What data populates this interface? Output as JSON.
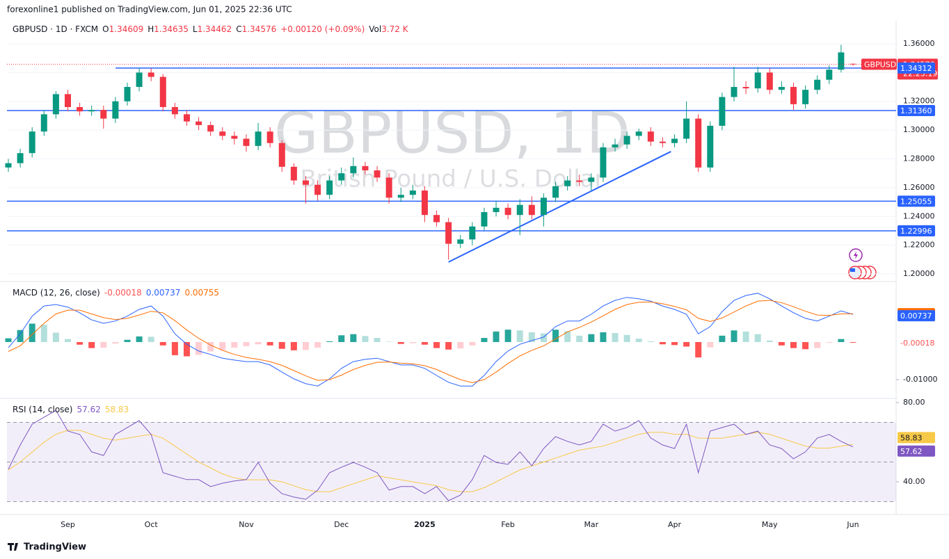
{
  "page": {
    "caption": "forexonline1 published on TradingView.com, Jun 01, 2025 22:36 UTC",
    "brand": "TradingView"
  },
  "chart_data": [
    {
      "type": "candlestick",
      "title": "GBPUSD · 1D · FXCM",
      "legend_labels": [
        "O",
        "H",
        "L",
        "C",
        "Vol"
      ],
      "change": "+0.00120 (+0.09%)",
      "volume": "3.72 K",
      "watermark": "GBPUSD, 1D",
      "watermark_subtitle": "British Pound / U.S. Dollar",
      "symbol": "GBPUSD",
      "countdown": "22:23:19",
      "categories": [
        null,
        null,
        null,
        null,
        null,
        "Sep",
        null,
        null,
        null,
        null,
        null,
        null,
        "Oct",
        null,
        null,
        null,
        null,
        null,
        null,
        null,
        "Nov",
        null,
        null,
        null,
        null,
        null,
        null,
        null,
        "Dec",
        null,
        null,
        null,
        null,
        null,
        null,
        "2025",
        null,
        null,
        null,
        null,
        null,
        null,
        "Feb",
        null,
        null,
        null,
        null,
        null,
        null,
        "Mar",
        null,
        null,
        null,
        null,
        null,
        null,
        "Apr",
        null,
        null,
        null,
        null,
        null,
        null,
        null,
        "May",
        null,
        null,
        null,
        null,
        null,
        null,
        "Jun"
      ],
      "open": [
        1.274,
        1.277,
        1.284,
        1.299,
        1.311,
        1.325,
        1.316,
        1.313,
        1.314,
        1.308,
        1.32,
        1.33,
        1.34,
        1.337,
        1.316,
        1.311,
        1.306,
        1.3035,
        1.299,
        1.296,
        1.294,
        1.289,
        1.299,
        1.291,
        1.2745,
        1.265,
        1.262,
        1.255,
        1.265,
        1.27,
        1.275,
        1.272,
        1.267,
        1.253,
        1.255,
        1.258,
        1.241,
        1.236,
        1.221,
        1.224,
        1.233,
        1.243,
        1.246,
        1.241,
        1.248,
        1.241,
        1.253,
        1.261,
        1.265,
        1.264,
        1.267,
        1.288,
        1.29,
        1.296,
        1.299,
        1.292,
        1.291,
        1.294,
        1.308,
        1.274,
        1.303,
        1.323,
        1.33,
        1.329,
        1.34,
        1.328,
        1.33,
        1.318,
        1.328,
        1.335,
        1.342,
        1.34609
      ],
      "high": [
        1.28,
        1.287,
        1.302,
        1.314,
        1.327,
        1.328,
        1.319,
        1.317,
        1.317,
        1.323,
        1.333,
        1.3434,
        1.343,
        1.339,
        1.319,
        1.314,
        1.309,
        1.306,
        1.302,
        1.299,
        1.297,
        1.305,
        1.302,
        1.293,
        1.277,
        1.268,
        1.265,
        1.268,
        1.274,
        1.281,
        1.278,
        1.275,
        1.27,
        1.26,
        1.262,
        1.261,
        1.244,
        1.239,
        1.227,
        1.236,
        1.246,
        1.251,
        1.249,
        1.252,
        1.254,
        1.256,
        1.264,
        1.268,
        1.269,
        1.27,
        1.291,
        1.294,
        1.299,
        1.301,
        1.302,
        1.295,
        1.297,
        1.32,
        1.311,
        1.306,
        1.326,
        1.344,
        1.334,
        1.344,
        1.343,
        1.334,
        1.333,
        1.331,
        1.338,
        1.345,
        1.3593,
        1.34635
      ],
      "low": [
        1.271,
        1.274,
        1.281,
        1.296,
        1.308,
        1.313,
        1.31,
        1.31,
        1.301,
        1.305,
        1.317,
        1.327,
        1.334,
        1.313,
        1.308,
        1.303,
        1.3,
        1.296,
        1.293,
        1.29,
        1.285,
        1.286,
        1.288,
        1.271,
        1.262,
        1.249,
        1.251,
        1.252,
        1.262,
        1.267,
        1.269,
        1.264,
        1.249,
        1.25,
        1.252,
        1.236,
        1.233,
        1.21,
        1.218,
        1.22,
        1.23,
        1.24,
        1.238,
        1.227,
        1.238,
        1.233,
        1.25,
        1.258,
        1.261,
        1.258,
        1.264,
        1.285,
        1.287,
        1.293,
        1.289,
        1.288,
        1.288,
        1.291,
        1.271,
        1.271,
        1.3,
        1.32,
        1.325,
        1.326,
        1.325,
        1.325,
        1.314,
        1.315,
        1.325,
        1.332,
        1.34,
        1.34462
      ],
      "close": [
        1.277,
        1.284,
        1.299,
        1.311,
        1.325,
        1.316,
        1.313,
        1.314,
        1.308,
        1.32,
        1.33,
        1.34,
        1.337,
        1.316,
        1.311,
        1.306,
        1.3035,
        1.299,
        1.296,
        1.294,
        1.289,
        1.299,
        1.291,
        1.2745,
        1.265,
        1.262,
        1.255,
        1.265,
        1.27,
        1.275,
        1.272,
        1.267,
        1.253,
        1.255,
        1.258,
        1.241,
        1.236,
        1.221,
        1.224,
        1.233,
        1.243,
        1.246,
        1.241,
        1.248,
        1.241,
        1.253,
        1.261,
        1.265,
        1.264,
        1.267,
        1.288,
        1.29,
        1.296,
        1.299,
        1.292,
        1.291,
        1.294,
        1.308,
        1.274,
        1.303,
        1.323,
        1.33,
        1.329,
        1.34,
        1.328,
        1.33,
        1.318,
        1.328,
        1.335,
        1.342,
        1.354,
        1.34576
      ],
      "up_color": "#089981",
      "down_color": "#f23645",
      "level_color": "#2962ff",
      "grid": true,
      "ylim": [
        1.1947,
        1.3711
      ],
      "yticks": [
        {
          "value": 1.2,
          "label": "1.20000"
        },
        {
          "value": 1.22,
          "label": "1.22000"
        },
        {
          "value": 1.24,
          "label": "1.24000"
        },
        {
          "value": 1.26,
          "label": "1.26000"
        },
        {
          "value": 1.28,
          "label": "1.28000"
        },
        {
          "value": 1.3,
          "label": "1.30000"
        },
        {
          "value": 1.32,
          "label": "1.32000"
        },
        {
          "value": 1.34,
          "label": "1.34000"
        },
        {
          "value": 1.36,
          "label": "1.36000"
        }
      ],
      "levels": [
        1.34312,
        {
          "value": 1.3136,
          "label": "1.31360"
        },
        1.25055,
        1.22996
      ],
      "trendline": {
        "x": [
          37,
          55.7
        ],
        "y": [
          1.2083,
          1.2851
        ]
      }
    },
    {
      "type": "macd",
      "title": "MACD (12, 26, close)",
      "series": [
        {
          "color": "#2962ff",
          "values": [
            -0.0015,
            0.0022,
            0.0069,
            0.0096,
            0.01,
            0.0093,
            0.0078,
            0.0059,
            0.005,
            0.0056,
            0.0069,
            0.0087,
            0.0096,
            0.0069,
            0.0022,
            -0.0006,
            -0.0024,
            -0.0033,
            -0.0043,
            -0.0048,
            -0.0052,
            -0.0052,
            -0.0061,
            -0.008,
            -0.0098,
            -0.0111,
            -0.0117,
            -0.0098,
            -0.007,
            -0.0052,
            -0.0046,
            -0.0043,
            -0.0052,
            -0.0061,
            -0.0061,
            -0.007,
            -0.0089,
            -0.0107,
            -0.0117,
            -0.0117,
            -0.0089,
            -0.0052,
            -0.0024,
            -0.0006,
            0.0004,
            0.0013,
            0.0041,
            0.0056,
            0.0056,
            0.0074,
            0.0096,
            0.0111,
            0.0119,
            0.0115,
            0.0109,
            0.0096,
            0.0087,
            0.0074,
            0.0022,
            0.0041,
            0.0081,
            0.0111,
            0.0124,
            0.013,
            0.0115,
            0.0096,
            0.0078,
            0.0063,
            0.0056,
            0.0069,
            0.0083,
            0.00737
          ]
        },
        {
          "color": "#ff6d00",
          "values": [
            -0.0025,
            -0.001,
            0.002,
            0.005,
            0.0075,
            0.0085,
            0.0085,
            0.0075,
            0.0065,
            0.006,
            0.0063,
            0.0072,
            0.0082,
            0.0078,
            0.0057,
            0.0032,
            0.001,
            -0.0008,
            -0.0022,
            -0.0033,
            -0.0041,
            -0.0046,
            -0.0052,
            -0.0062,
            -0.0076,
            -0.009,
            -0.0102,
            -0.01,
            -0.0088,
            -0.0073,
            -0.0062,
            -0.0054,
            -0.0053,
            -0.0056,
            -0.0058,
            -0.0063,
            -0.0073,
            -0.0087,
            -0.01,
            -0.0108,
            -0.01,
            -0.008,
            -0.0057,
            -0.0037,
            -0.0022,
            -0.001,
            0.0008,
            0.0027,
            0.0039,
            0.0053,
            0.007,
            0.0087,
            0.01,
            0.0106,
            0.0107,
            0.0102,
            0.0095,
            0.0086,
            0.0063,
            0.0055,
            0.0064,
            0.008,
            0.0096,
            0.0109,
            0.0111,
            0.0105,
            0.0094,
            0.0082,
            0.0072,
            0.0071,
            0.0075,
            0.00755
          ]
        },
        {
          "colors": [
            "#26a69a",
            "#b2dfdb",
            "#ffcdd2",
            "#ff5252"
          ],
          "values": [
            0.001,
            0.0032,
            0.0049,
            0.0046,
            0.0025,
            0.0008,
            -0.0007,
            -0.0016,
            -0.0015,
            -0.0004,
            0.0006,
            0.0015,
            0.0014,
            -0.0009,
            -0.0035,
            -0.0038,
            -0.0034,
            -0.0025,
            -0.0021,
            -0.0015,
            -0.0011,
            -0.0006,
            -0.0009,
            -0.0018,
            -0.0022,
            -0.0021,
            -0.0015,
            0.0002,
            0.0018,
            0.0021,
            0.0016,
            0.0011,
            0.0001,
            -0.0005,
            -0.0003,
            -0.0007,
            -0.0016,
            -0.002,
            -0.0017,
            -0.0009,
            0.0011,
            0.0028,
            0.0033,
            0.0031,
            0.0026,
            0.0023,
            0.0033,
            0.0029,
            0.0017,
            0.0021,
            0.0026,
            0.0024,
            0.0019,
            0.0009,
            0.0002,
            -0.0006,
            -0.0008,
            -0.0012,
            -0.0041,
            -0.0014,
            0.0017,
            0.0031,
            0.0028,
            0.0021,
            0.0004,
            -0.0009,
            -0.0016,
            -0.0019,
            -0.0016,
            -0.0002,
            0.0008,
            -0.00018
          ]
        }
      ],
      "ylim": [
        -0.015,
        0.0161
      ],
      "yticks": [
        {
          "value": -0.01,
          "label": "-0.01000"
        }
      ]
    },
    {
      "type": "rsi",
      "title": "RSI (14, close)",
      "band": [
        30,
        70
      ],
      "midline": 50,
      "band_color": "#7e57c2",
      "series": [
        {
          "color": "#7e57c2",
          "values": [
            46.3,
            58.6,
            69.1,
            72.6,
            76,
            65.6,
            63.9,
            55.1,
            53.3,
            63.9,
            67.4,
            70.9,
            63.9,
            44.6,
            42.8,
            41.1,
            41.1,
            37.6,
            39.3,
            40.4,
            41.1,
            49.8,
            39.3,
            34,
            32.3,
            31.2,
            35.8,
            44.6,
            47.4,
            49.8,
            47.4,
            44.6,
            35.8,
            37.6,
            37.6,
            34,
            37.6,
            30.5,
            33.3,
            41.1,
            53.3,
            49.8,
            48.8,
            55.1,
            48.1,
            56.8,
            62.8,
            60.4,
            58.6,
            60.4,
            69.1,
            65.6,
            67.4,
            70.9,
            62.1,
            58.6,
            56.8,
            69.1,
            44.6,
            65.6,
            67.4,
            69.1,
            63.9,
            65.6,
            58.6,
            56.8,
            51.6,
            55.1,
            62.1,
            63.9,
            60.4,
            57.62
          ]
        },
        {
          "color": "#f7c948",
          "values": [
            46,
            50,
            55,
            60,
            64,
            66,
            66,
            64,
            62,
            61,
            62,
            63,
            64,
            62,
            58,
            54,
            50,
            47,
            44,
            42,
            41,
            41,
            41,
            40,
            38,
            36,
            35,
            35,
            37,
            39,
            41,
            43,
            42,
            41,
            40,
            39,
            38,
            36,
            35,
            35,
            37,
            40,
            43,
            46,
            48,
            50,
            52,
            54,
            56,
            57,
            58,
            60,
            62,
            64,
            65,
            65,
            64,
            64,
            62,
            62,
            62,
            63,
            64,
            65,
            64,
            62,
            60,
            58,
            57,
            57,
            58,
            58.83
          ]
        }
      ],
      "ylim": [
        23.5,
        81.4
      ],
      "yticks": [
        {
          "value": 80,
          "label": "80.00"
        },
        {
          "value": 40,
          "label": "40.00"
        }
      ]
    }
  ]
}
